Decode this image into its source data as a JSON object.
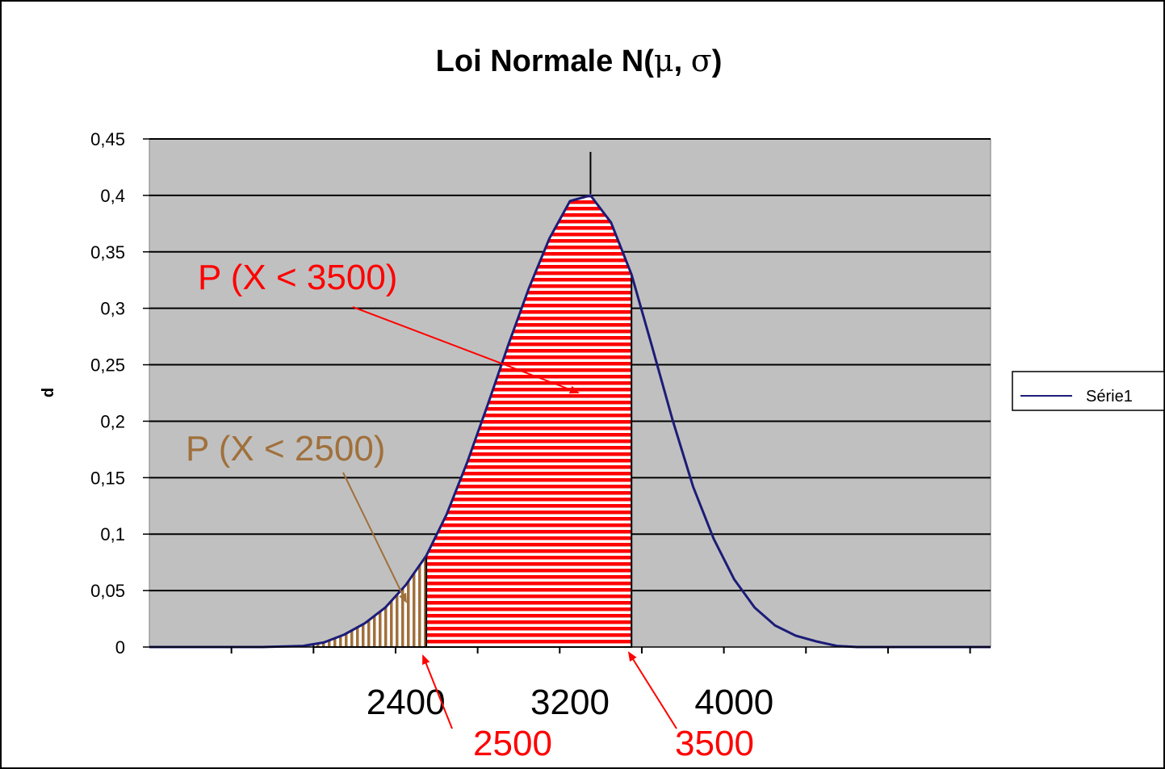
{
  "chart_data": {
    "type": "area",
    "title_main": "Loi Normale N(",
    "title_mu": "μ",
    "title_sep": ", ",
    "title_sigma": "σ",
    "title_close": ")",
    "ylabel": "d",
    "ylim": [
      0,
      0.45
    ],
    "y_ticks": [
      "0",
      "0,05",
      "0,1",
      "0,15",
      "0,2",
      "0,25",
      "0,3",
      "0,35",
      "0,4",
      "0,45"
    ],
    "y_tick_values": [
      0,
      0.05,
      0.1,
      0.15,
      0.2,
      0.25,
      0.3,
      0.35,
      0.4,
      0.45
    ],
    "xlim": [
      1150,
      5250
    ],
    "x_labels": [
      {
        "value": 2400,
        "text": "2400"
      },
      {
        "value": 3200,
        "text": "3200"
      },
      {
        "value": 4000,
        "text": "4000"
      }
    ],
    "x_tick_values": [
      1550,
      1950,
      2350,
      2750,
      3150,
      3550,
      3950,
      4350,
      4750,
      5150
    ],
    "grid": true,
    "legend_position": "right",
    "series": [
      {
        "name": "Série1",
        "color": "#1c1c78",
        "x": [
          1150,
          1700,
          1900,
          2000,
          2100,
          2200,
          2300,
          2400,
          2500,
          2600,
          2700,
          2800,
          2900,
          3000,
          3100,
          3200,
          3300,
          3400,
          3500,
          3600,
          3700,
          3800,
          3900,
          4000,
          4100,
          4200,
          4300,
          4400,
          4500,
          4600,
          4700,
          4800,
          5250
        ],
        "y": [
          0,
          0,
          0.001,
          0.004,
          0.011,
          0.021,
          0.035,
          0.055,
          0.081,
          0.118,
          0.164,
          0.215,
          0.268,
          0.318,
          0.362,
          0.395,
          0.4,
          0.376,
          0.33,
          0.266,
          0.201,
          0.142,
          0.096,
          0.06,
          0.035,
          0.019,
          0.01,
          0.005,
          0.001,
          0,
          0,
          0,
          0
        ]
      }
    ],
    "shaded_regions": [
      {
        "from": 1950,
        "to": 2500,
        "color": "#a0703c",
        "pattern": "vertical"
      },
      {
        "from": 2500,
        "to": 3500,
        "color": "#ff0000",
        "pattern": "horizontal"
      }
    ],
    "annotations": [
      {
        "text": "P (X < 3500)",
        "color": "#ff0000"
      },
      {
        "text": "P (X < 2500)",
        "color": "#a0703c"
      },
      {
        "text": "2500",
        "color": "#ff0000"
      },
      {
        "text": "3500",
        "color": "#ff0000"
      }
    ]
  }
}
